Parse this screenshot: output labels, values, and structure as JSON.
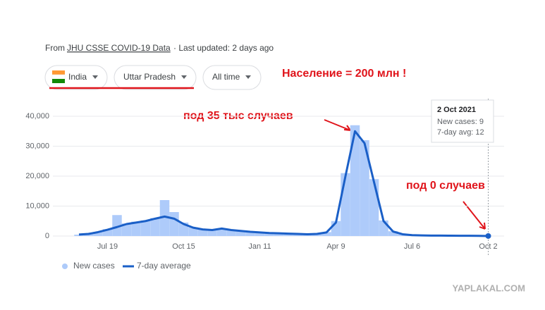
{
  "chart_data": {
    "type": "combo",
    "source": {
      "prefix": "From",
      "link": "JHU CSSE COVID-19 Data",
      "suffix": "· Last updated: 2 days ago"
    },
    "chips": [
      "India",
      "Uttar Pradesh",
      "All time"
    ],
    "annotations": [
      "Население = 200 млн !",
      "под 35 тыс случаев",
      "под 0 случаев"
    ],
    "categories": [
      null,
      null,
      null,
      "Jul 19",
      null,
      null,
      null,
      null,
      null,
      null,
      null,
      "Oct 15",
      null,
      null,
      null,
      null,
      null,
      null,
      null,
      "Jan 11",
      null,
      null,
      null,
      null,
      null,
      null,
      null,
      "Apr 9",
      null,
      null,
      null,
      null,
      null,
      null,
      null,
      "Jul 6",
      null,
      null,
      null,
      null,
      null,
      null,
      null,
      "Oct 2"
    ],
    "series": [
      {
        "name": "New cases",
        "color": "#aecbfa",
        "kind": "bar",
        "values": [
          450,
          800,
          1400,
          2300,
          7000,
          4200,
          4800,
          5200,
          6000,
          12000,
          8000,
          4500,
          2900,
          2300,
          2100,
          2600,
          2000,
          1700,
          1500,
          1300,
          1000,
          900,
          800,
          700,
          650,
          750,
          1300,
          5000,
          21000,
          37000,
          32000,
          19000,
          5200,
          1600,
          650,
          320,
          210,
          160,
          150,
          120,
          100,
          80,
          60,
          9
        ]
      },
      {
        "name": "7-day average",
        "color": "#1a5fc7",
        "kind": "line",
        "values": [
          500,
          700,
          1300,
          2100,
          3000,
          4000,
          4500,
          5000,
          5800,
          6500,
          5800,
          4000,
          2800,
          2200,
          2000,
          2500,
          2000,
          1700,
          1400,
          1200,
          1000,
          900,
          800,
          700,
          600,
          700,
          1200,
          4500,
          20000,
          35000,
          31000,
          18000,
          5000,
          1500,
          600,
          300,
          200,
          150,
          150,
          120,
          100,
          80,
          60,
          12
        ]
      }
    ],
    "ylim": [
      0,
      40000
    ],
    "yticks": [
      0,
      {
        "value": 10000,
        "label": "10,000"
      },
      {
        "value": 20000,
        "label": "20,000"
      },
      {
        "value": 30000,
        "label": "30,000"
      },
      {
        "value": 40000,
        "label": "40,000"
      }
    ],
    "grid": true,
    "tooltip": {
      "title": "2 Oct 2021",
      "lines": [
        "New cases: 9",
        "7-day avg: 12"
      ]
    },
    "watermark": "YAPLAKAL.COM"
  }
}
